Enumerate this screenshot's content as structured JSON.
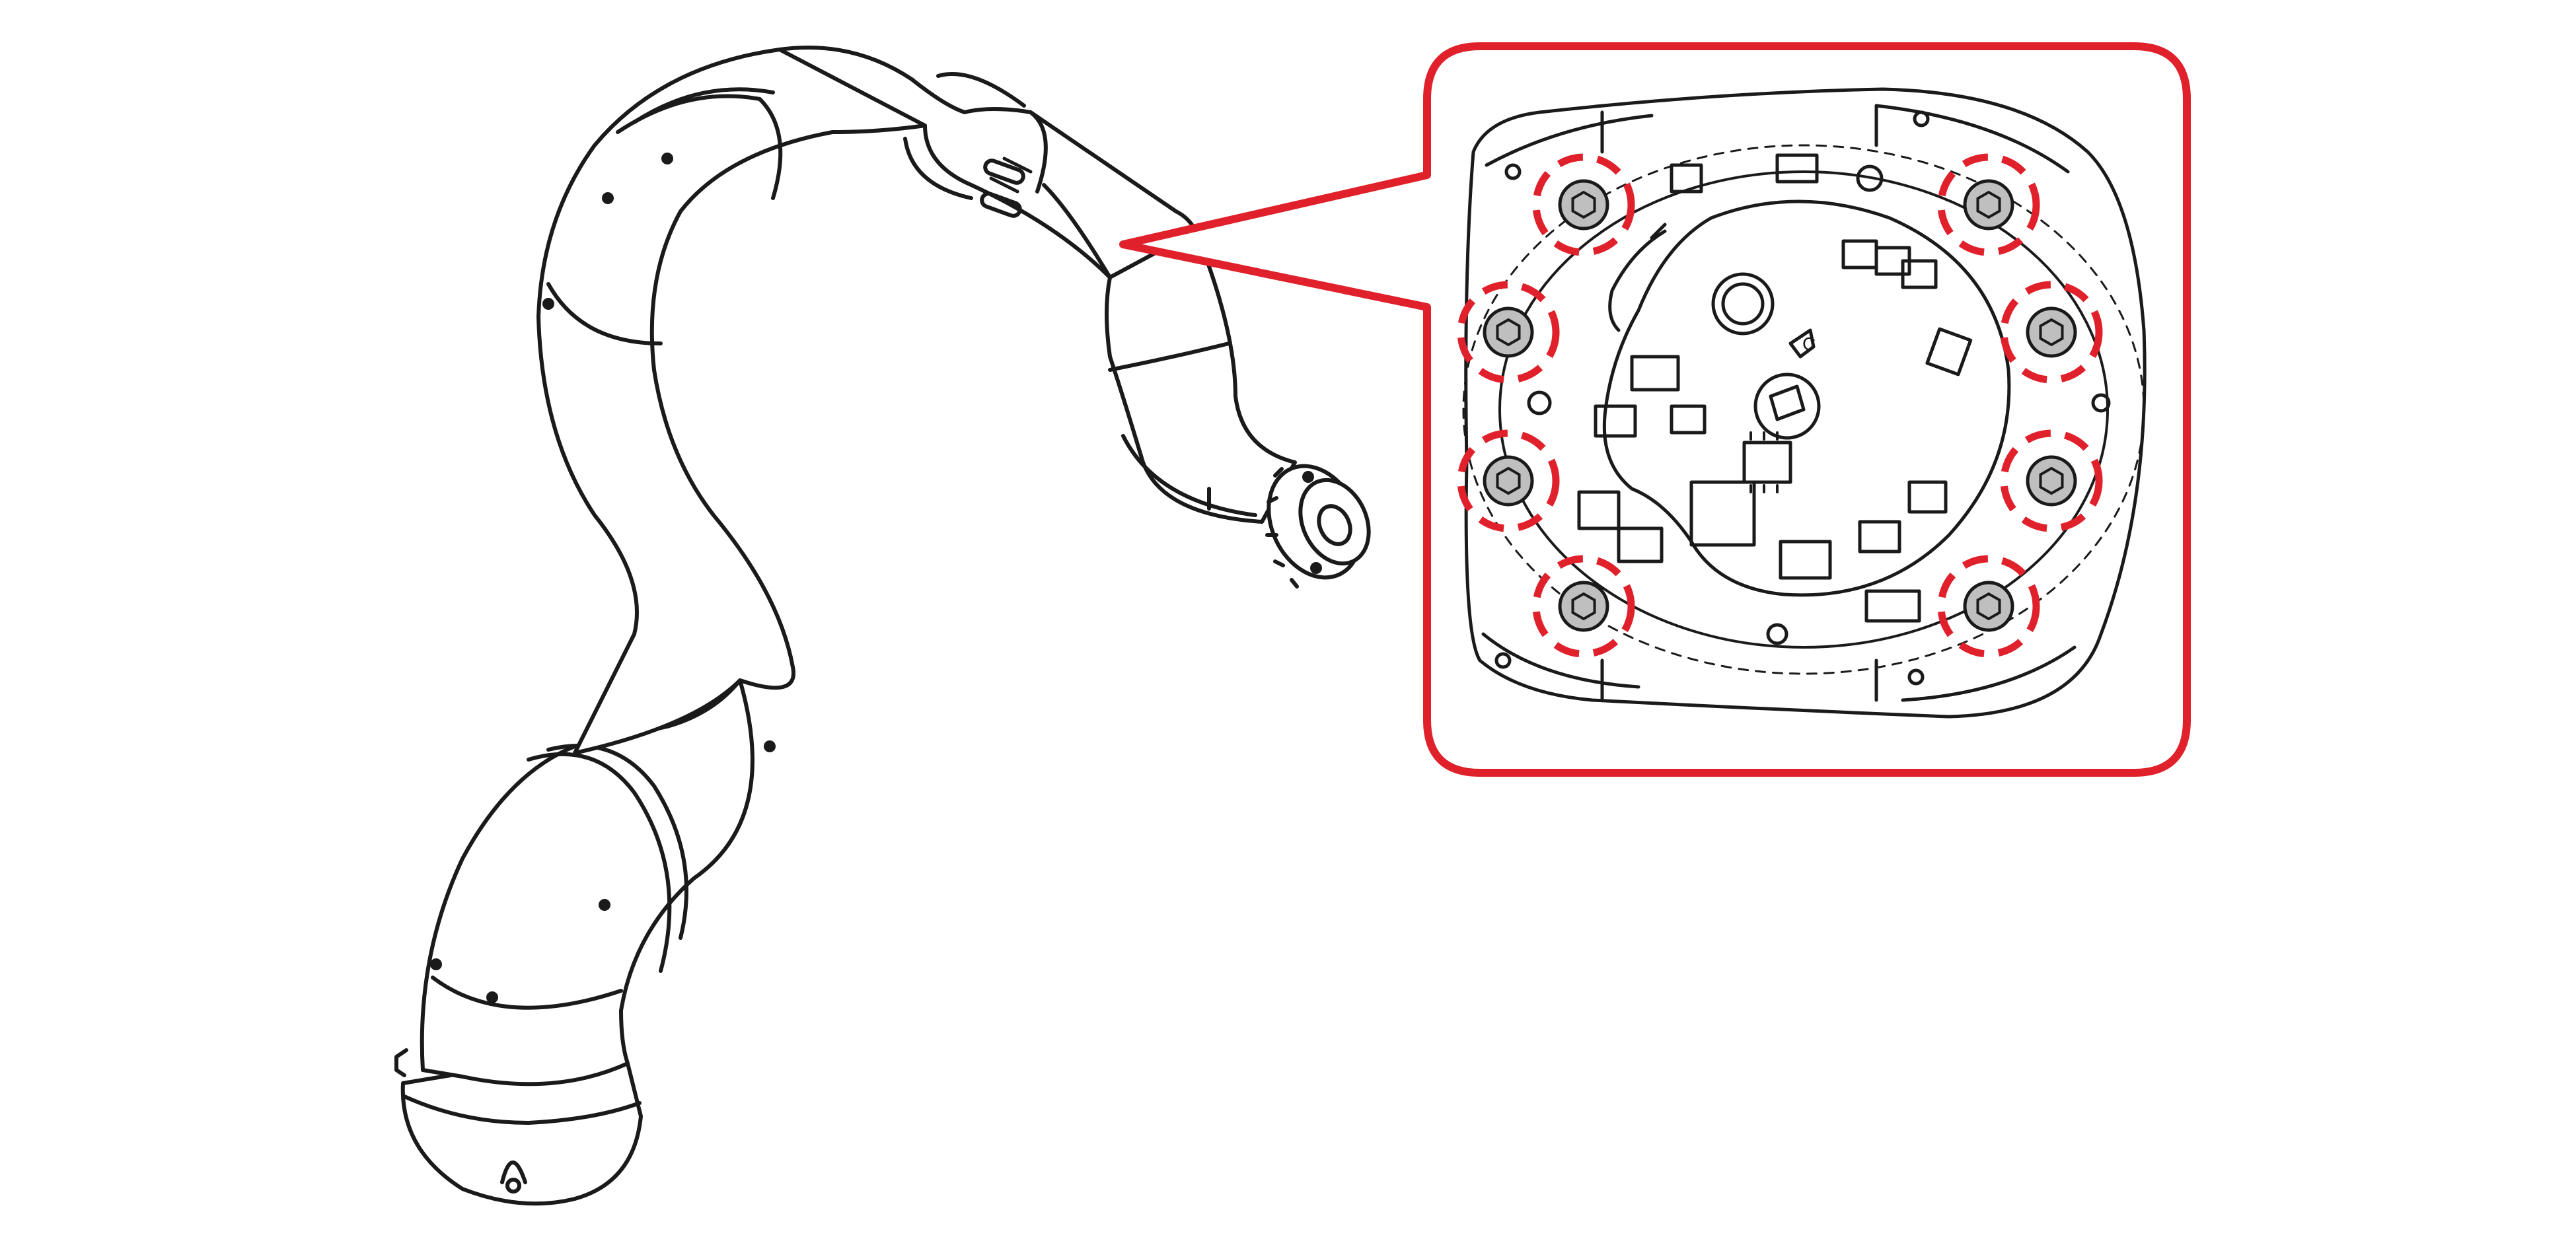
{
  "figure": {
    "subject": "robot-arm-joint-bolt-removal",
    "colors": {
      "line": "#1a1a1a",
      "callout": "#e0202a",
      "bolt_fill": "#bfbfbf",
      "background": "#ffffff"
    },
    "bolt_count": 8,
    "highlight_style": "dashed-circle",
    "icons": [
      "robot-arm-drawing",
      "zoom-callout-box",
      "joint-flange-detail",
      "socket-head-bolt",
      "circuit-board"
    ]
  }
}
